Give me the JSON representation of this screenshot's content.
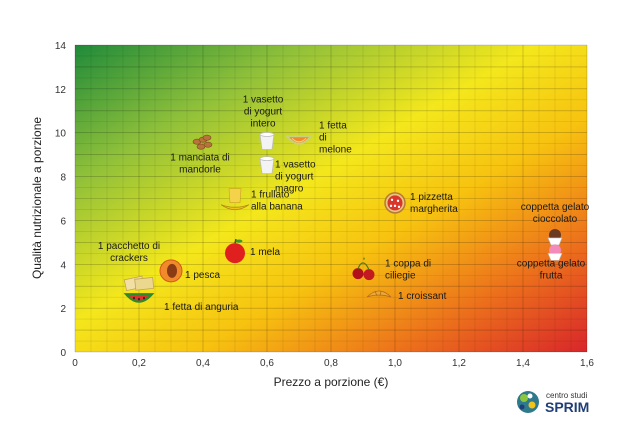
{
  "chart_data": {
    "type": "scatter",
    "xlabel": "Prezzo a porzione (€)",
    "ylabel": "Qualità nutrizionale a porzione",
    "xlim": [
      0,
      1.6
    ],
    "ylim": [
      0,
      14
    ],
    "x_ticks": [
      "0",
      "0,2",
      "0,4",
      "0,6",
      "0,8",
      "1,0",
      "1,2",
      "1,4",
      "1,6"
    ],
    "y_ticks": [
      "0",
      "2",
      "4",
      "6",
      "8",
      "10",
      "12",
      "14"
    ],
    "grid": true,
    "background": "gradient green (top-left) to yellow to red (bottom-right)",
    "points": [
      {
        "label": "1 vasetto di yogurt intero",
        "x": 0.6,
        "y": 9.6,
        "icon": "yogurt-cup-icon"
      },
      {
        "label": "1 fetta di melone",
        "x": 0.7,
        "y": 9.7,
        "icon": "melon-slice-icon"
      },
      {
        "label": "1 manciata di mandorle",
        "x": 0.4,
        "y": 9.5,
        "icon": "almonds-icon"
      },
      {
        "label": "1 vasetto di yogurt magro",
        "x": 0.6,
        "y": 8.5,
        "icon": "yogurt-cup-icon"
      },
      {
        "label": "1 frullato alla banana",
        "x": 0.5,
        "y": 6.9,
        "icon": "banana-smoothie-icon"
      },
      {
        "label": "1 pizzetta margherita",
        "x": 1.0,
        "y": 6.8,
        "icon": "pizza-icon"
      },
      {
        "label": "coppetta gelato cioccolato",
        "x": 1.5,
        "y": 5.2,
        "icon": "ice-cream-chocolate-icon"
      },
      {
        "label": "1 pacchetto di crackers",
        "x": 0.2,
        "y": 3.2,
        "icon": "crackers-icon"
      },
      {
        "label": "1 mela",
        "x": 0.5,
        "y": 4.6,
        "icon": "apple-icon"
      },
      {
        "label": "1 coppa di ciliegie",
        "x": 0.9,
        "y": 3.8,
        "icon": "cherries-icon"
      },
      {
        "label": "coppetta gelato frutta",
        "x": 1.5,
        "y": 4.5,
        "icon": "ice-cream-fruit-icon"
      },
      {
        "label": "1 pesca",
        "x": 0.3,
        "y": 3.7,
        "icon": "peach-icon"
      },
      {
        "label": "1 croissant",
        "x": 0.95,
        "y": 2.6,
        "icon": "croissant-icon"
      },
      {
        "label": "1 fetta di anguria",
        "x": 0.2,
        "y": 2.5,
        "icon": "watermelon-slice-icon"
      }
    ]
  },
  "logo": {
    "line1": "centro studi",
    "line2": "SPRIM",
    "icon": "globe-icon"
  }
}
